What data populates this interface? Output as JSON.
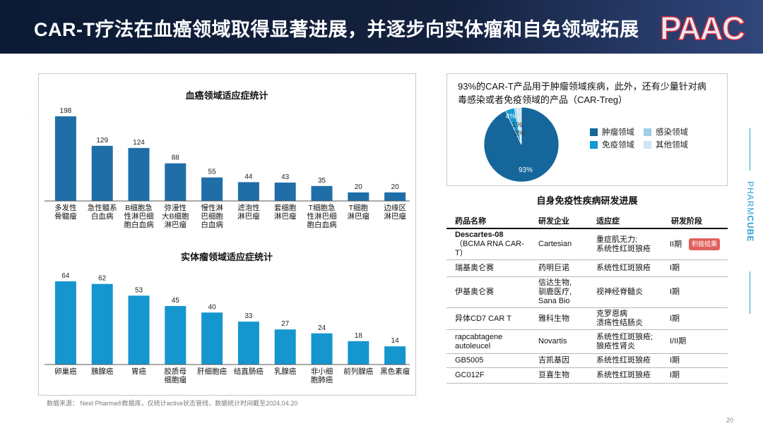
{
  "header": {
    "title": "CAR-T疗法在血癌领域取得显著进展，并逐步向实体瘤和自免领域拓展",
    "logo_text": "PAAC"
  },
  "side_brand": {
    "label_light": "PHARM",
    "label_bold": "CUBE"
  },
  "page_number": "20",
  "source_note": "数据来源：  Next Pharma®数据库，仅统计active状态管线，数据统计时间截至2024.04.20",
  "colors": {
    "blood_bar": "#1f6ea8",
    "solid_bar": "#1596cf",
    "pie_tumor": "#15669b",
    "pie_immune": "#139ad3",
    "pie_infection": "#9dcfe8",
    "pie_other": "#cfe6f3",
    "badge": "#e0605c",
    "header_bg": "#0b1a35"
  },
  "chart_data": [
    {
      "type": "bar",
      "title": "血癌领域适应症统计",
      "categories": [
        [
          "多发性",
          "骨髓瘤"
        ],
        [
          "急性髓系",
          "白血病"
        ],
        [
          "B细胞急",
          "性淋巴细",
          "胞白血病"
        ],
        [
          "弥漫性",
          "大B细胞",
          "淋巴瘤"
        ],
        [
          "慢性淋",
          "巴细胞",
          "白血病"
        ],
        [
          "滤泡性",
          "淋巴瘤"
        ],
        [
          "套细胞",
          "淋巴瘤"
        ],
        [
          "T细胞急",
          "性淋巴细",
          "胞白血病"
        ],
        [
          "T细胞",
          "淋巴瘤"
        ],
        [
          "边缘区",
          "淋巴瘤"
        ]
      ],
      "values": [
        198,
        129,
        124,
        88,
        55,
        44,
        43,
        35,
        20,
        20
      ],
      "ylim": [
        0,
        198
      ]
    },
    {
      "type": "bar",
      "title": "实体瘤领域适应症统计",
      "categories": [
        [
          "卵巢癌"
        ],
        [
          "胰腺癌"
        ],
        [
          "胃癌"
        ],
        [
          "胶质母",
          "细胞瘤"
        ],
        [
          "肝细胞癌"
        ],
        [
          "结直肠癌"
        ],
        [
          "乳腺癌"
        ],
        [
          "非小细",
          "胞肺癌"
        ],
        [
          "前列腺癌"
        ],
        [
          "黑色素瘤"
        ]
      ],
      "values": [
        64,
        62,
        53,
        45,
        40,
        33,
        27,
        24,
        18,
        14
      ],
      "ylim": [
        0,
        64
      ]
    },
    {
      "type": "pie",
      "description": "93%的CAR-T产品用于肿瘤领域疾病，此外，还有少量针对病毒感染或者免疫领域的产品（CAR-Treg）",
      "slices": [
        {
          "name": "肿瘤领域",
          "value": 93,
          "label": "93%"
        },
        {
          "name": "免疫领域",
          "value": 4,
          "label": "4%"
        },
        {
          "name": "感染领域",
          "value": 1,
          "label": "1%"
        },
        {
          "name": "其他领域",
          "value": 2,
          "label": "2%"
        }
      ]
    }
  ],
  "trials_table": {
    "title": "自身免疫性疾病研发进展",
    "headers": [
      "药品名称",
      "研发企业",
      "适应症",
      "研发阶段"
    ],
    "rows": [
      {
        "drug": "Descartes-08",
        "drug_sub": "（BCMA RNA CAR-T）",
        "company": "Cartesian",
        "indication": "重症肌无力;\n系统性红斑狼疮",
        "phase": "II期",
        "badge": "积极结果"
      },
      {
        "drug": "瑞基奥仑赛",
        "company": "药明巨诺",
        "indication": "系统性红斑狼疮",
        "phase": "I期"
      },
      {
        "drug": "伊基奥仑赛",
        "company": "信达生物,\n驯鹿医疗,\nSana Bio",
        "indication": "视神经脊髓炎",
        "phase": "I期"
      },
      {
        "drug": "异体CD7 CAR T",
        "company": "雅科生物",
        "indication": "克罗恩病\n溃疡性结肠炎",
        "phase": "I期"
      },
      {
        "drug": "rapcabtagene\nautoleucel",
        "company": "Novartis",
        "indication": "系统性红斑狼疮;\n狼疮性肾炎",
        "phase": "I/II期"
      },
      {
        "drug": "GB5005",
        "company": "吉凯基因",
        "indication": "系统性红斑狼疮",
        "phase": "I期"
      },
      {
        "drug": "GC012F",
        "company": "亘喜生物",
        "indication": "系统性红斑狼疮",
        "phase": "I期"
      }
    ]
  }
}
